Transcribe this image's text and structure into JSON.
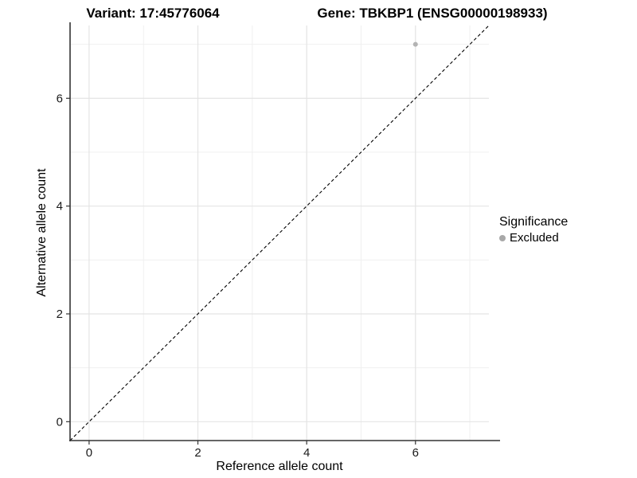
{
  "header": {
    "title_left": "Variant: 17:45776064",
    "title_right": "Gene: TBKBP1 (ENSG00000198933)"
  },
  "chart_data": {
    "type": "scatter",
    "title_left": "Variant: 17:45776064",
    "title_right": "Gene: TBKBP1 (ENSG00000198933)",
    "xlabel": "Reference allele count",
    "ylabel": "Alternative allele count",
    "xlim": [
      -0.35,
      7.35
    ],
    "ylim": [
      -0.35,
      7.35
    ],
    "x_ticks": [
      0,
      2,
      4,
      6
    ],
    "y_ticks": [
      0,
      2,
      4,
      6
    ],
    "x_minor_ticks": [
      1,
      3,
      5,
      7
    ],
    "y_minor_ticks": [
      1,
      3,
      5,
      7
    ],
    "grid": true,
    "points": [
      {
        "x": 6,
        "y": 7,
        "series": "Excluded"
      }
    ],
    "identity_line": {
      "type": "dashed",
      "from": [
        -0.35,
        -0.35
      ],
      "to": [
        7.35,
        7.35
      ],
      "color": "#000000"
    },
    "legend": {
      "title": "Significance",
      "position": "right",
      "entries": [
        {
          "label": "Excluded",
          "color": "#a8a8a8"
        }
      ]
    },
    "colors": {
      "point": "#b3b3b3",
      "grid_major": "#e4e4e4",
      "grid_minor": "#f0f0f0",
      "axis_line": "#333333",
      "tick_label": "#1a1a1a",
      "background": "#ffffff"
    }
  }
}
